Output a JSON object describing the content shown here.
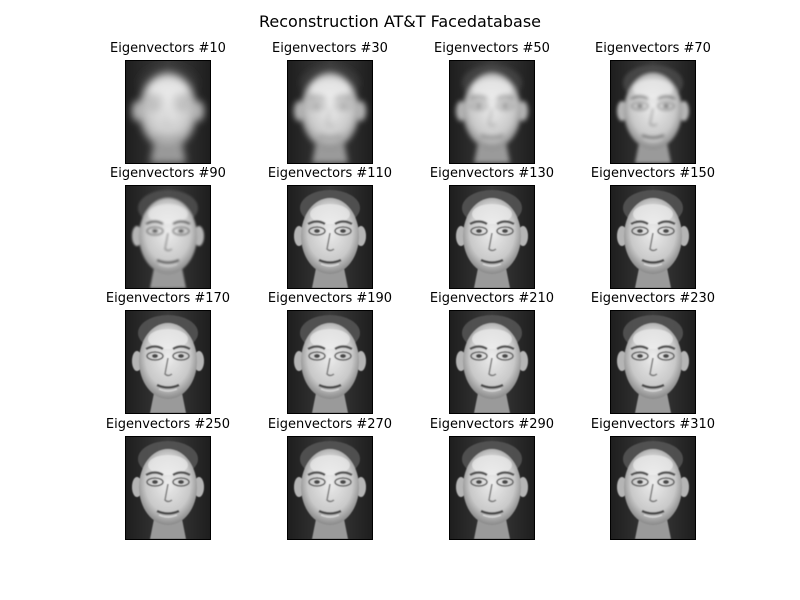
{
  "figure": {
    "title": "Reconstruction AT&T Facedatabase"
  },
  "panels": [
    {
      "title": "Eigenvectors #10",
      "eigenvectors": 10
    },
    {
      "title": "Eigenvectors #30",
      "eigenvectors": 30
    },
    {
      "title": "Eigenvectors #50",
      "eigenvectors": 50
    },
    {
      "title": "Eigenvectors #70",
      "eigenvectors": 70
    },
    {
      "title": "Eigenvectors #90",
      "eigenvectors": 90
    },
    {
      "title": "Eigenvectors #110",
      "eigenvectors": 110
    },
    {
      "title": "Eigenvectors #130",
      "eigenvectors": 130
    },
    {
      "title": "Eigenvectors #150",
      "eigenvectors": 150
    },
    {
      "title": "Eigenvectors #170",
      "eigenvectors": 170
    },
    {
      "title": "Eigenvectors #190",
      "eigenvectors": 190
    },
    {
      "title": "Eigenvectors #210",
      "eigenvectors": 210
    },
    {
      "title": "Eigenvectors #230",
      "eigenvectors": 230
    },
    {
      "title": "Eigenvectors #250",
      "eigenvectors": 250
    },
    {
      "title": "Eigenvectors #270",
      "eigenvectors": 270
    },
    {
      "title": "Eigenvectors #290",
      "eigenvectors": 290
    },
    {
      "title": "Eigenvectors #310",
      "eigenvectors": 310
    }
  ],
  "colors": {
    "background": "#ffffff",
    "frame": "#000000",
    "image_dark": "#2b2b2b",
    "image_light": "#e6e6e6"
  }
}
